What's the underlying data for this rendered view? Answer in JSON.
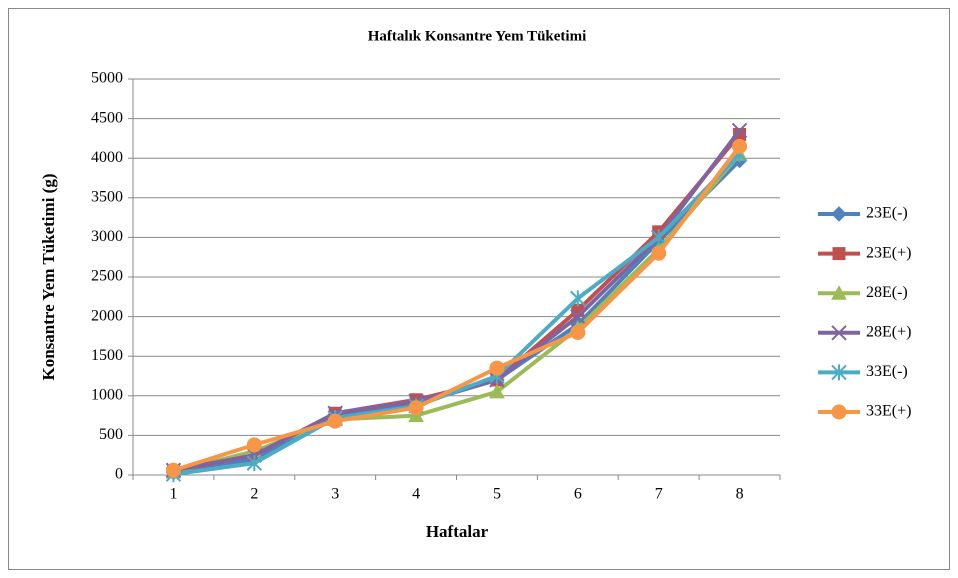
{
  "chart_data": {
    "type": "line",
    "title": "Haftalık Konsantre Yem Tüketimi",
    "xlabel": "Haftalar",
    "ylabel": "Konsantre Yem Tüketimi (g)",
    "categories": [
      "1",
      "2",
      "3",
      "4",
      "5",
      "6",
      "7",
      "8"
    ],
    "series": [
      {
        "name": "23E(-)",
        "color": "#4F81BD",
        "marker": "diamond",
        "values": [
          30,
          200,
          760,
          900,
          1200,
          1900,
          2950,
          3970
        ]
      },
      {
        "name": "23E(+)",
        "color": "#C0504D",
        "marker": "square",
        "values": [
          50,
          250,
          780,
          950,
          1200,
          2080,
          3070,
          4300
        ]
      },
      {
        "name": "28E(-)",
        "color": "#9BBB59",
        "marker": "triangle",
        "values": [
          40,
          300,
          700,
          750,
          1050,
          1850,
          2850,
          4050
        ]
      },
      {
        "name": "28E(+)",
        "color": "#8064A2",
        "marker": "x",
        "values": [
          60,
          250,
          780,
          930,
          1200,
          2000,
          3000,
          4350
        ]
      },
      {
        "name": "33E(-)",
        "color": "#4BACC6",
        "marker": "star",
        "values": [
          10,
          150,
          720,
          870,
          1250,
          2230,
          3000,
          4050
        ]
      },
      {
        "name": "33E(+)",
        "color": "#F79646",
        "marker": "circle",
        "values": [
          60,
          380,
          680,
          850,
          1350,
          1800,
          2800,
          4150
        ]
      }
    ],
    "ylim": [
      0,
      5000
    ],
    "yticks": [
      0,
      500,
      1000,
      1500,
      2000,
      2500,
      3000,
      3500,
      4000,
      4500,
      5000
    ],
    "grid": true,
    "legend": "right"
  }
}
